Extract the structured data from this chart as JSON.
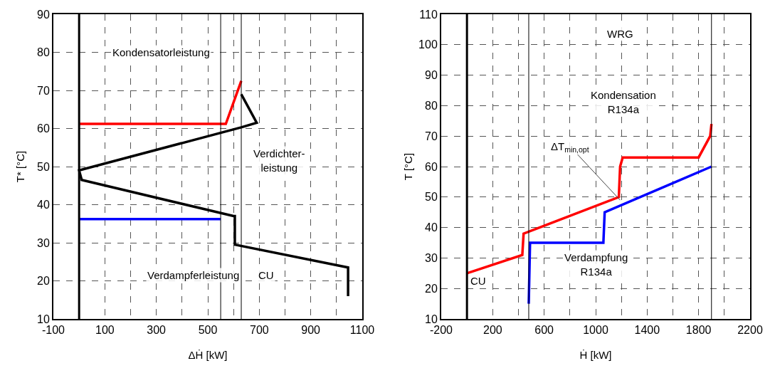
{
  "chart_data": [
    {
      "type": "line",
      "xlabel": "ΔḢ [kW]",
      "ylabel": "T* [°C]",
      "xlim": [
        -100,
        1100
      ],
      "ylim": [
        10,
        90
      ],
      "xticks": [
        -100,
        {
          "value": 0,
          "label": null
        },
        100,
        {
          "value": 200,
          "label": null
        },
        300,
        {
          "value": 400,
          "label": null
        },
        500,
        {
          "value": 600,
          "label": null
        },
        700,
        {
          "value": 800,
          "label": null
        },
        900,
        {
          "value": 1000,
          "label": null
        },
        1100
      ],
      "yticks": [
        10,
        20,
        30,
        40,
        50,
        60,
        70,
        80,
        90
      ],
      "grid": true,
      "line_style": "solid",
      "marker": "none",
      "series": [
        {
          "color": "#000000",
          "x": [
            630,
            690,
            630,
            0,
            10,
            600,
            605,
            605,
            1045,
            1045
          ],
          "values": [
            69,
            61.5,
            60.3,
            49,
            46.5,
            37,
            37,
            29.5,
            23.5,
            16
          ]
        },
        {
          "color": "#ff0000",
          "x": [
            0,
            570,
            630
          ],
          "values": [
            61.2,
            61.2,
            72.5
          ]
        },
        {
          "color": "#0000ff",
          "x": [
            0,
            550
          ],
          "values": [
            36.2,
            36.2
          ]
        }
      ],
      "ref_lines": [
        {
          "axis": "x",
          "value": 0,
          "color": "#000000"
        },
        {
          "axis": "x",
          "value": 550,
          "color": "#000000"
        },
        {
          "axis": "x",
          "value": 630,
          "color": "#000000"
        }
      ],
      "annotations": [
        "Kondensatorleistung",
        "Verdichter-\nleistung",
        "Verdampferleistung",
        "CU"
      ]
    },
    {
      "type": "line",
      "xlabel": "Ḣ [kW]",
      "ylabel": "T [°C]",
      "xlim": [
        -200,
        2200
      ],
      "ylim": [
        10,
        110
      ],
      "xticks": [
        -200,
        {
          "value": 0,
          "label": null
        },
        200,
        {
          "value": 400,
          "label": null
        },
        600,
        {
          "value": 800,
          "label": null
        },
        1000,
        {
          "value": 1200,
          "label": null
        },
        1400,
        {
          "value": 1600,
          "label": null
        },
        1800,
        {
          "value": 2000,
          "label": null
        },
        2200
      ],
      "yticks": [
        10,
        20,
        30,
        40,
        50,
        60,
        70,
        80,
        90,
        100,
        110
      ],
      "grid": true,
      "line_style": "solid",
      "marker": "none",
      "series": [
        {
          "color": "#ff0000",
          "x": [
            0,
            430,
            440,
            1180,
            1190,
            1210,
            1800,
            1890,
            1900
          ],
          "values": [
            25,
            31,
            38,
            50,
            60,
            63,
            63,
            70,
            74
          ]
        },
        {
          "color": "#0000ff",
          "x": [
            480,
            490,
            1060,
            1070,
            1900
          ],
          "values": [
            15,
            35,
            35,
            45,
            60
          ]
        }
      ],
      "ref_lines": [
        {
          "axis": "x",
          "value": 0,
          "color": "#000000"
        },
        {
          "axis": "x",
          "value": 480,
          "color": "#000000"
        },
        {
          "axis": "x",
          "value": 1900,
          "color": "#000000"
        }
      ],
      "annotations": [
        "WRG",
        "Kondensation\nR134a",
        {
          "text": "ΔT$_{min,opt}$",
          "x": 1190,
          "y": 49
        },
        "Verdampfung\nR134a",
        "CU"
      ]
    }
  ]
}
